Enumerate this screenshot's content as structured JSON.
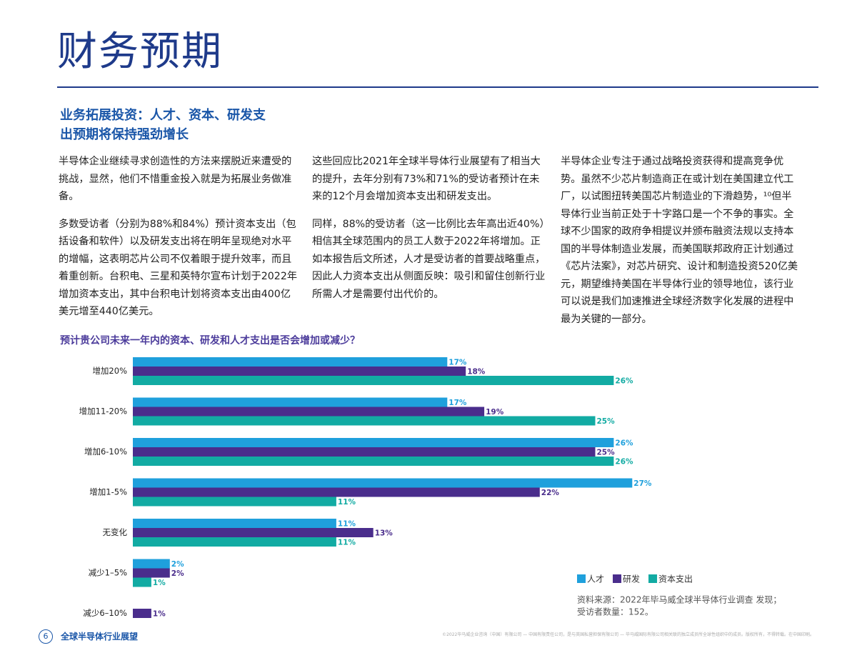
{
  "header": {
    "title": "财务预期"
  },
  "section": {
    "heading": [
      "业务拓展投资：人才、资本、研发支",
      "出预期将保持强劲增长"
    ],
    "columns": [
      [
        "半导体企业继续寻求创造性的方法来摆脱近来遭受的挑战，显然，他们不惜重金投入就是为拓展业务做准备。",
        "多数受访者（分别为88%和84%）预计资本支出（包括设备和软件）以及研发支出将在明年呈现绝对水平的增幅，这表明芯片公司不仅着眼于提升效率，而且着重创新。台积电、三星和英特尔宣布计划于2022年增加资本支出，其中台积电计划将资本支出由400亿美元增至440亿美元。"
      ],
      [
        "这些回应比2021年全球半导体行业展望有了相当大的提升，去年分别有73%和71%的受访者预计在未来的12个月会增加资本支出和研发支出。",
        "同样，88%的受访者（这一比例比去年高出近40%）相信其全球范围内的员工人数于2022年将增加。正如本报告后文所述，人才是受访者的首要战略重点，因此人力资本支出从侧面反映：吸引和留住创新行业所需人才是需要付出代价的。"
      ],
      [
        "半导体企业专注于通过战略投资获得和提高竞争优势。虽然不少芯片制造商正在或计划在美国建立代工厂，以试图扭转美国芯片制造业的下滑趋势，¹⁰但半导体行业当前正处于十字路口是一个不争的事实。全球不少国家的政府争相提议并颁布融资法规以支持本国的半导体制造业发展，而美国联邦政府正计划通过《芯片法案》，对芯片研究、设计和制造投资520亿美元，期望维持美国在半导体行业的领导地位，该行业可以说是我们加速推进全球经济数字化发展的进程中最为关键的一部分。"
      ]
    ]
  },
  "chart_data": {
    "type": "bar",
    "orientation": "horizontal",
    "title": "预计贵公司未来一年内的资本、研发和人才支出是否会增加或减少？",
    "categories": [
      "增加20%",
      "增加11-20%",
      "增加6-10%",
      "增加1-5%",
      "无变化",
      "减少1–5%",
      "减少6–10%"
    ],
    "series": [
      {
        "name": "人才",
        "color": "#1fa0dc",
        "values": [
          17,
          17,
          26,
          27,
          11,
          2,
          null
        ],
        "value_labels": [
          "17%",
          "17%",
          "26%",
          "27%",
          "11%",
          "2%",
          null
        ]
      },
      {
        "name": "研发",
        "color": "#4a2d8c",
        "values": [
          18,
          19,
          25,
          22,
          13,
          2,
          1
        ],
        "value_labels": [
          "18%",
          "19%",
          "25%",
          "22%",
          "13%",
          "2%",
          "1%"
        ]
      },
      {
        "name": "资本支出",
        "color": "#12aba3",
        "values": [
          26,
          25,
          26,
          11,
          11,
          1,
          null
        ],
        "value_labels": [
          "26%",
          "25%",
          "26%",
          "11%",
          "11%",
          "1%",
          null
        ]
      }
    ],
    "legend_position": "bottom-right",
    "source": [
      "资料来源：2022年毕马威全球半导体行业调查 发现；",
      "受访者数量：152。"
    ]
  },
  "footer": {
    "page": "6",
    "title": "全球半导体行业展望",
    "legal": "©2022毕马威企业咨询（中国）有限公司 — 中国有限责任公司，是与英国私营担保有限公司 — 毕马威国际有限公司相关联的独立成员所全球性组织中的成员。版权所有，不得转载。在中国印刷。"
  }
}
